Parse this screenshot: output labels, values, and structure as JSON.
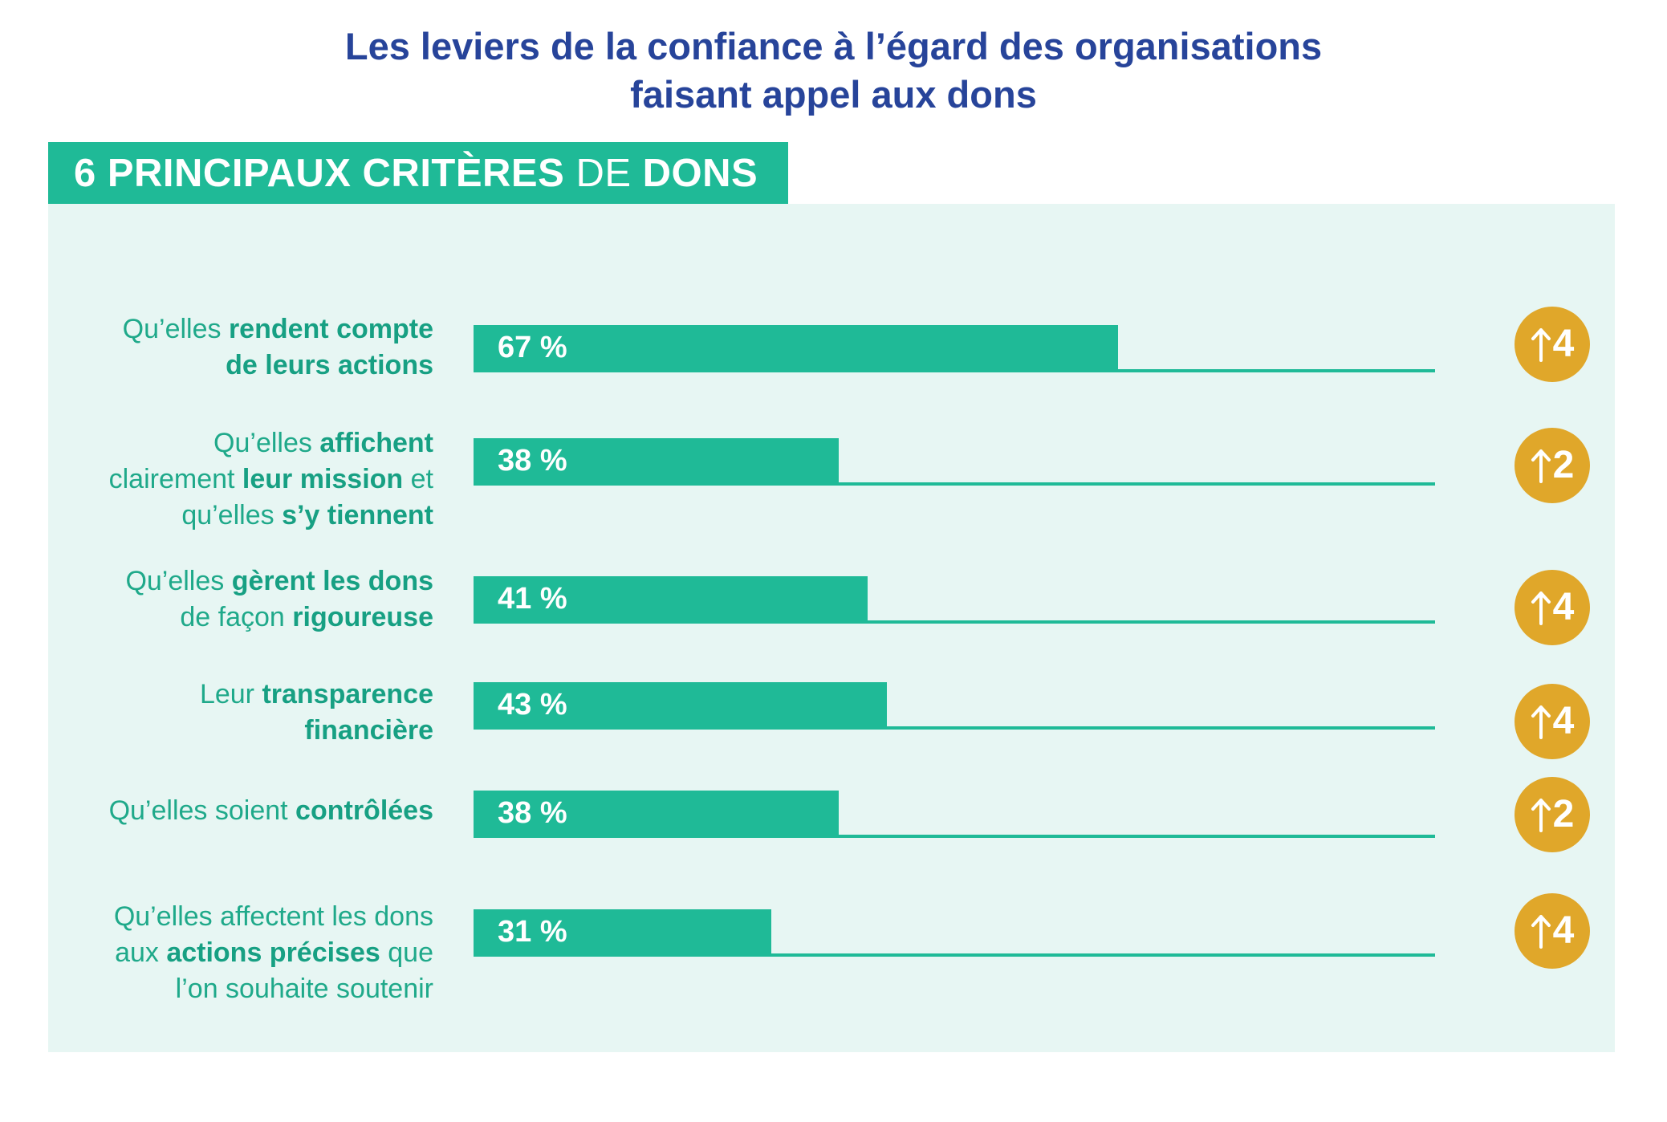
{
  "title": {
    "line1": "Les leviers de la confiance à l’égard des organisations",
    "line2": "faisant appel aux dons"
  },
  "tag": {
    "part1": "6 PRINCIPAUX CRITÈRES",
    "part2": "DE",
    "part3": "DONS"
  },
  "colors": {
    "title": "#27449a",
    "accent": "#1fba97",
    "panel": "#e7f6f3",
    "badge": "#e0a72a"
  },
  "chart_data": {
    "type": "bar",
    "orientation": "horizontal",
    "xlim": [
      0,
      100
    ],
    "categories": [
      "Qu’elles rendent compte de leurs actions",
      "Qu’elles affichent clairement leur mission et qu’elles s’y tiennent",
      "Qu’elles gèrent les dons de façon rigoureuse",
      "Leur transparence financière",
      "Qu’elles soient contrôlées",
      "Qu’elles affectent les dons aux actions précises que l’on souhaite soutenir"
    ],
    "values": [
      67,
      38,
      41,
      43,
      38,
      31
    ],
    "value_labels": [
      "67 %",
      "38 %",
      "41 %",
      "43 %",
      "38 %",
      "31 %"
    ],
    "badges": [
      "4",
      "2",
      "4",
      "4",
      "2",
      "4"
    ],
    "badge_icon": "up-arrow-icon"
  },
  "rows": [
    {
      "lines": [
        [
          {
            "t": "Qu’elles ",
            "b": false
          },
          {
            "t": "rendent compte",
            "b": true
          }
        ],
        [
          {
            "t": "de leurs actions",
            "b": true
          }
        ]
      ]
    },
    {
      "lines": [
        [
          {
            "t": "Qu’elles ",
            "b": false
          },
          {
            "t": "affichent",
            "b": true
          }
        ],
        [
          {
            "t": "clairement ",
            "b": false
          },
          {
            "t": "leur mission",
            "b": true
          },
          {
            "t": " et",
            "b": false
          }
        ],
        [
          {
            "t": "qu’elles ",
            "b": false
          },
          {
            "t": "s’y tiennent",
            "b": true
          }
        ]
      ]
    },
    {
      "lines": [
        [
          {
            "t": "Qu’elles ",
            "b": false
          },
          {
            "t": "gèrent les dons",
            "b": true
          }
        ],
        [
          {
            "t": "de façon ",
            "b": false
          },
          {
            "t": "rigoureuse",
            "b": true
          }
        ]
      ]
    },
    {
      "lines": [
        [
          {
            "t": "Leur ",
            "b": false
          },
          {
            "t": "transparence",
            "b": true
          }
        ],
        [
          {
            "t": "financière",
            "b": true
          }
        ]
      ]
    },
    {
      "lines": [
        [
          {
            "t": "Qu’elles soient ",
            "b": false
          },
          {
            "t": "contrôlées",
            "b": true
          }
        ]
      ]
    },
    {
      "lines": [
        [
          {
            "t": "Qu’elles affectent les dons",
            "b": false
          }
        ],
        [
          {
            "t": "aux ",
            "b": false
          },
          {
            "t": "actions précises",
            "b": true
          },
          {
            "t": " que",
            "b": false
          }
        ],
        [
          {
            "t": "l’on souhaite soutenir",
            "b": false
          }
        ]
      ]
    }
  ]
}
